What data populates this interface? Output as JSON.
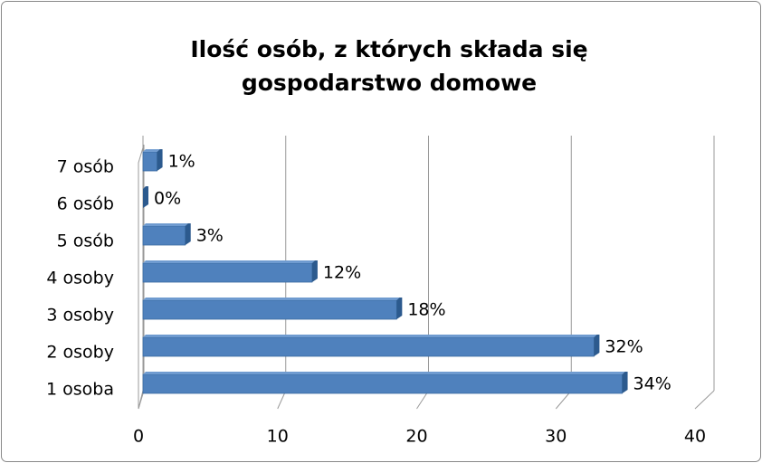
{
  "chart_data": {
    "type": "bar",
    "orientation": "horizontal",
    "title": "Ilość osób, z których składa się gospodarstwo domowe",
    "categories": [
      "1 osoba",
      "2 osoby",
      "3 osoby",
      "4 osoby",
      "5 osób",
      "6 osób",
      "7 osób"
    ],
    "values": [
      34,
      32,
      18,
      12,
      3,
      0,
      1
    ],
    "value_labels": [
      "34%",
      "32%",
      "18%",
      "12%",
      "3%",
      "0%",
      "1%"
    ],
    "color": "#4f81bd",
    "xlim": [
      0,
      40
    ],
    "xticks": [
      0,
      10,
      20,
      30,
      40
    ],
    "grid": true
  }
}
